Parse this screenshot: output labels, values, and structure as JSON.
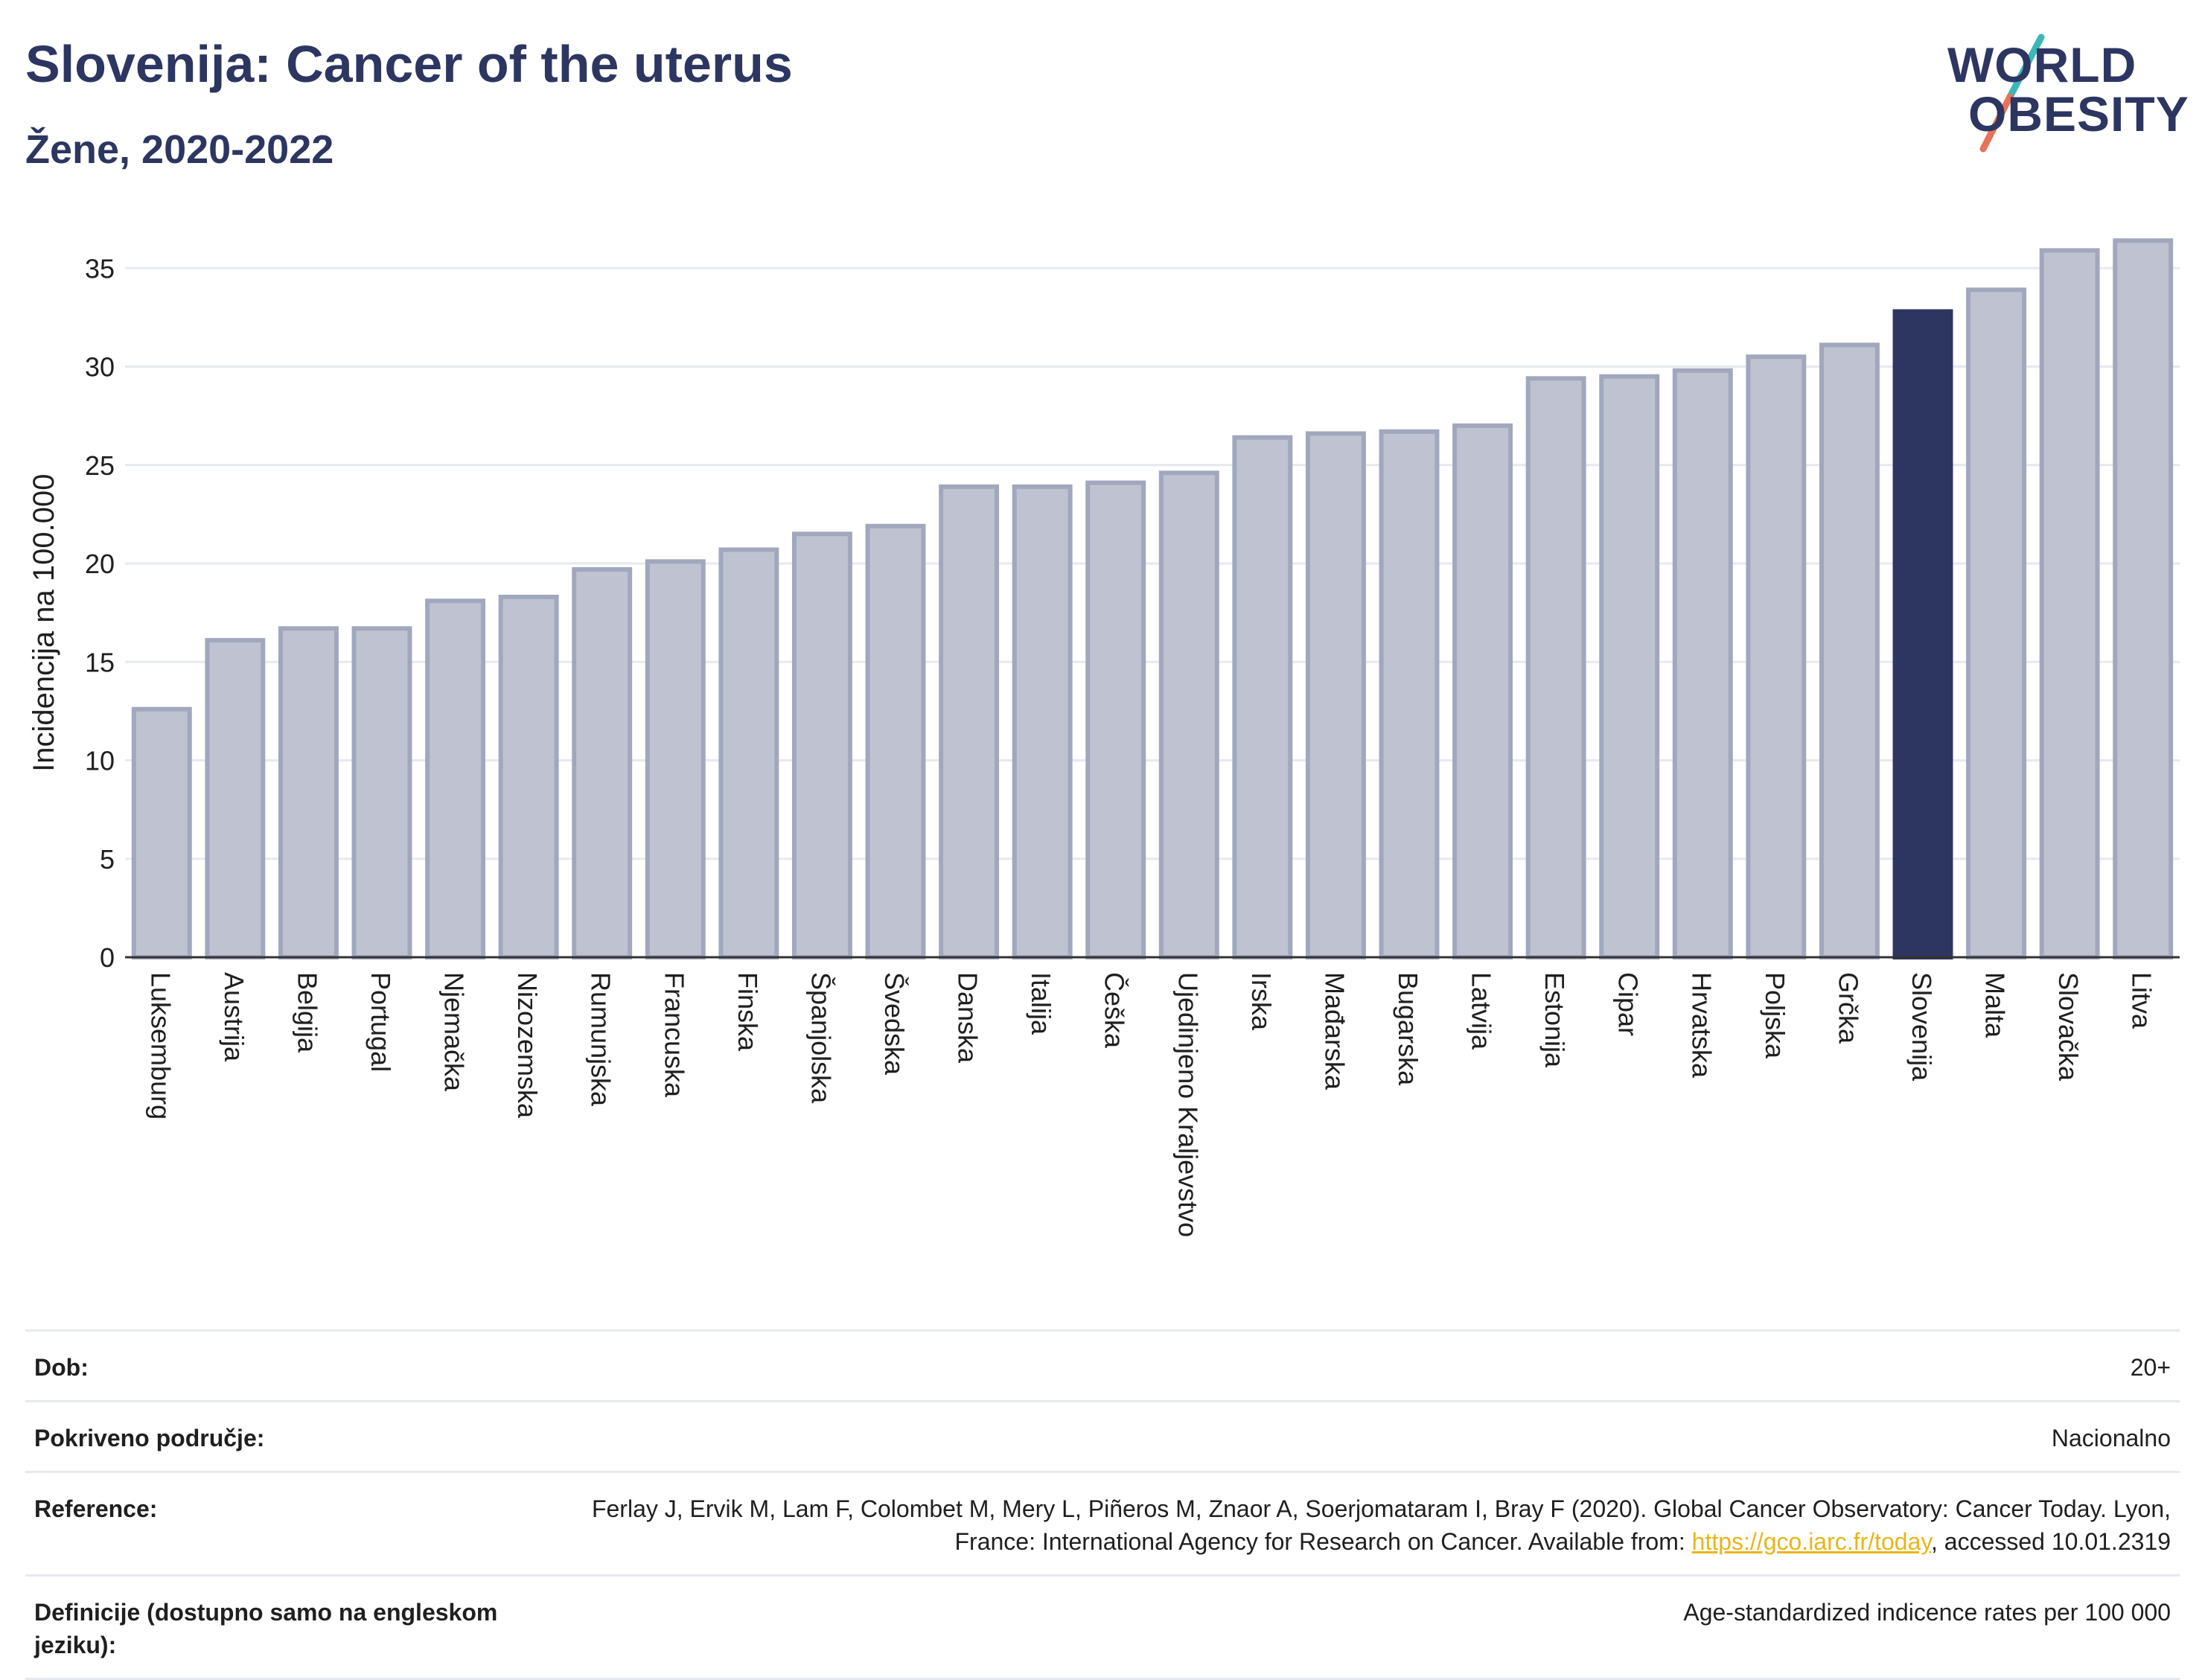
{
  "header": {
    "title": "Slovenija: Cancer of the uterus",
    "subtitle": "Žene, 2020-2022"
  },
  "logo": {
    "line1": "WORLD",
    "line2": "OBESITY",
    "colors": {
      "text": "#2d3661",
      "slash_top": "#3ab8b8",
      "slash_bottom": "#e8735a"
    }
  },
  "colors": {
    "bar": "#bfc3d1",
    "bar_stroke": "#a1a7bd",
    "highlight": "#2d3661",
    "grid": "#e6e9ef"
  },
  "chart_data": {
    "type": "bar",
    "ylabel": "Incidencija na 100.000",
    "xlabel": "",
    "ylim": [
      0,
      37
    ],
    "yticks": [
      0,
      5,
      10,
      15,
      20,
      25,
      30,
      35
    ],
    "grid": true,
    "highlight": "Slovenija",
    "categories": [
      "Luksemburg",
      "Austrija",
      "Belgija",
      "Portugal",
      "Njemačka",
      "Nizozemska",
      "Rumunjska",
      "Francuska",
      "Finska",
      "Španjolska",
      "Švedska",
      "Danska",
      "Italija",
      "Češka",
      "Ujedinjeno Kraljevstvo",
      "Irska",
      "Mađarska",
      "Bugarska",
      "Latvija",
      "Estonija",
      "Cipar",
      "Hrvatska",
      "Poljska",
      "Grčka",
      "Slovenija",
      "Malta",
      "Slovačka",
      "Litva"
    ],
    "values": [
      12.6,
      16.1,
      16.7,
      16.7,
      18.1,
      18.3,
      19.7,
      20.1,
      20.7,
      21.5,
      21.9,
      23.9,
      23.9,
      24.1,
      24.6,
      26.4,
      26.6,
      26.7,
      27.0,
      29.4,
      29.5,
      29.8,
      30.5,
      31.1,
      32.8,
      33.9,
      35.9,
      36.4
    ]
  },
  "meta": {
    "age_label": "Dob:",
    "age_value": "20+",
    "coverage_label": "Pokriveno područje:",
    "coverage_value": "Nacionalno",
    "reference_label": "Reference:",
    "reference_text_1": "Ferlay J, Ervik M, Lam F, Colombet M, Mery L, Piñeros M, Znaor A, Soerjomataram I, Bray F (2020). Global Cancer Observatory: Cancer Today. Lyon, France: International Agency for Research on Cancer. Available from: ",
    "reference_link": "https://gco.iarc.fr/today",
    "reference_text_2": ", accessed 10.01.2319",
    "definitions_label": "Definicije (dostupno samo na engleskom jeziku):",
    "definitions_value": "Age-standardized indicence rates per 100 000"
  }
}
